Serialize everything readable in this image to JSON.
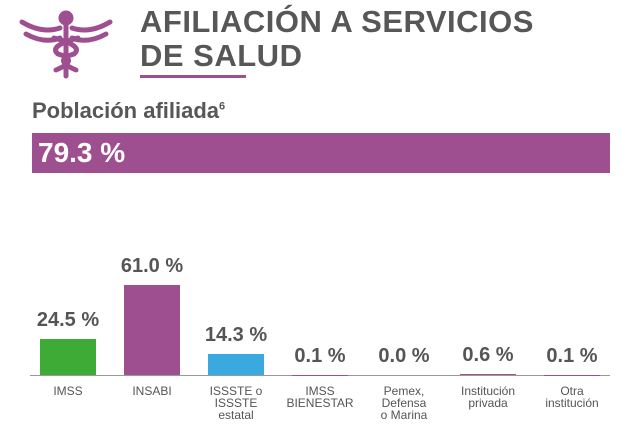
{
  "header": {
    "title": [
      "AFILIACIÓN A SERVICIOS",
      "DE SALUD"
    ]
  },
  "population": {
    "label": "Población afiliada",
    "note": "6",
    "value_label": "79.3 %"
  },
  "chart_data": {
    "type": "bar",
    "categories": [
      "IMSS",
      "INSABI",
      "ISSSTE o\nISSSTE\nestatal",
      "IMSS\nBIENESTAR",
      "Pemex,\nDefensa\no Marina",
      "Institución\nprivada",
      "Otra\ninstitución"
    ],
    "values": [
      24.5,
      61.0,
      14.3,
      0.1,
      0.0,
      0.6,
      0.1
    ],
    "value_labels": [
      "24.5 %",
      "61.0 %",
      "14.3 %",
      "0.1 %",
      "0.0 %",
      "0.6 %",
      "0.1 %"
    ],
    "colors": [
      "#3dab36",
      "#9e4f8f",
      "#3aa9df",
      "#9e4f8f",
      "#9e4f8f",
      "#9e4f8f",
      "#9e4f8f"
    ]
  }
}
